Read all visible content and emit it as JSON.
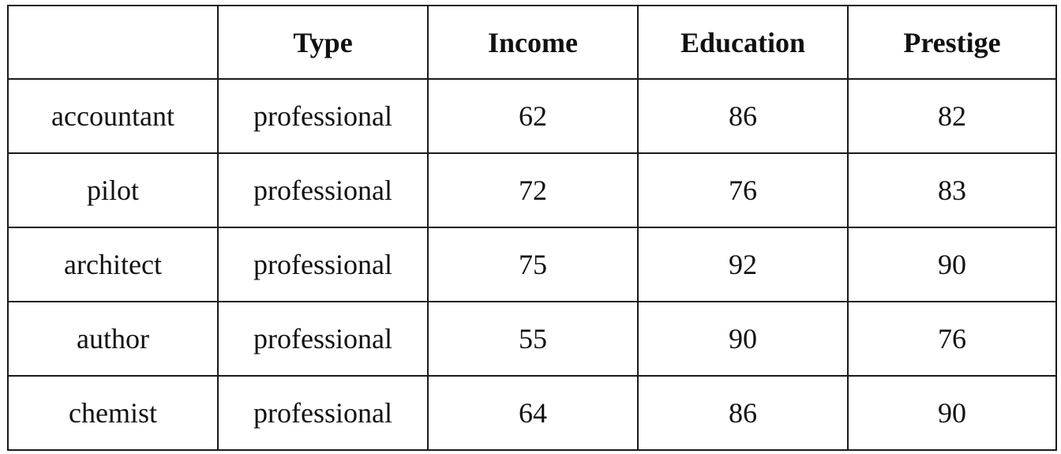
{
  "table": {
    "headers": [
      "",
      "Type",
      "Income",
      "Education",
      "Prestige"
    ],
    "rows": [
      [
        "accountant",
        "professional",
        "62",
        "86",
        "82"
      ],
      [
        "pilot",
        "professional",
        "72",
        "76",
        "83"
      ],
      [
        "architect",
        "professional",
        "75",
        "92",
        "90"
      ],
      [
        "author",
        "professional",
        "55",
        "90",
        "76"
      ],
      [
        "chemist",
        "professional",
        "64",
        "86",
        "90"
      ]
    ]
  }
}
